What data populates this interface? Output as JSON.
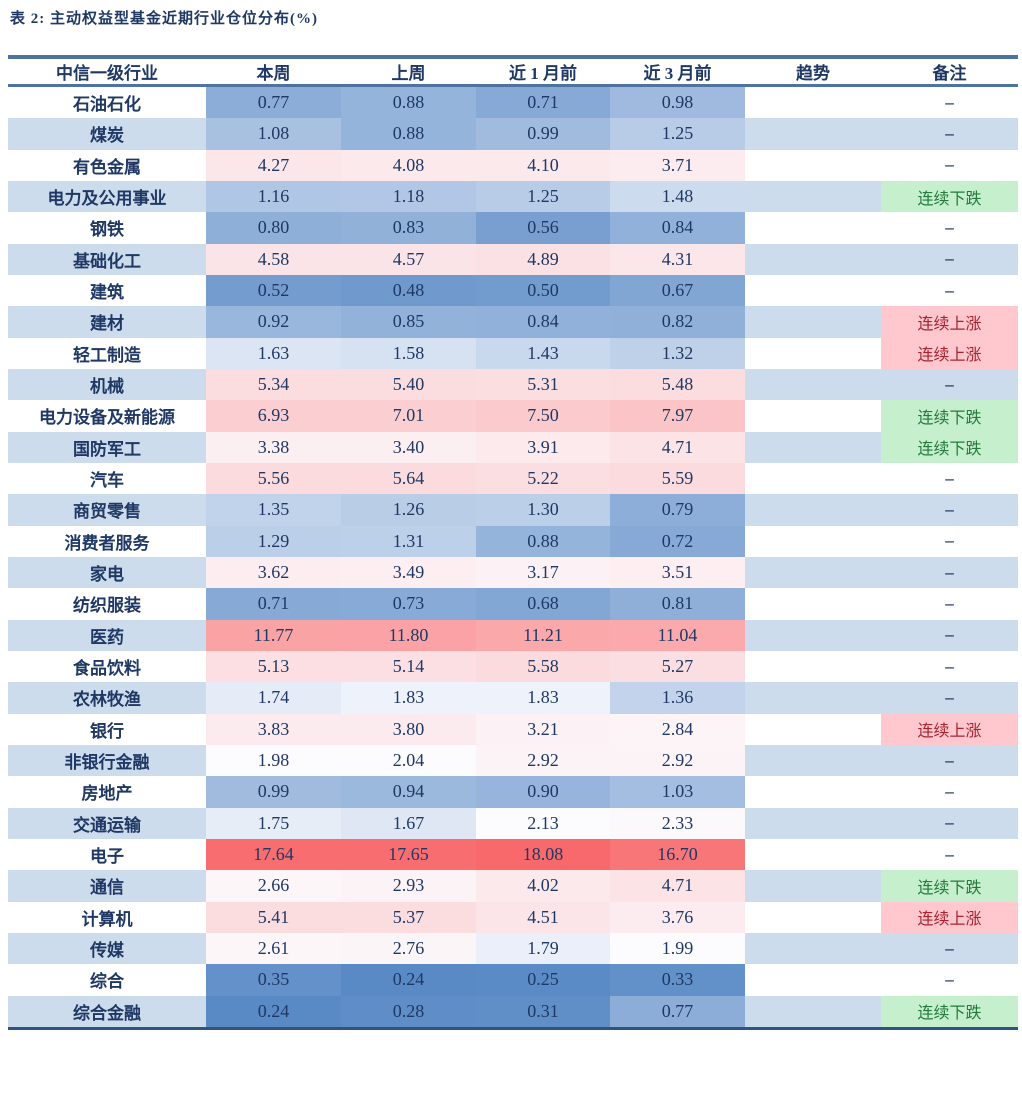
{
  "title": "表 2: 主动权益型基金近期行业仓位分布(%)",
  "colors": {
    "text": "#1F3864",
    "band": "#CDDCEC",
    "border_light": "#4E739E",
    "border_dark": "#2F5480",
    "badge_up_bg": "#FFC7CE",
    "badge_up_text": "#A52430",
    "badge_down_bg": "#C6EFCE",
    "badge_down_text": "#237A3B",
    "page_bg": "#FFFFFF"
  },
  "chart_data": {
    "type": "heatmap",
    "title": "表 2: 主动权益型基金近期行业仓位分布(%)",
    "header": [
      "中信一级行业",
      "本周",
      "上周",
      "近 1 月前",
      "近 3 月前",
      "趋势",
      "备注"
    ],
    "value_columns": [
      "本周",
      "上周",
      "近 1 月前",
      "近 3 月前"
    ],
    "colorscale": {
      "min_color": "#5A8AC6",
      "mid_color": "#FCFCFF",
      "max_color": "#F8696B",
      "note": "3-color scale: min -> median -> max"
    },
    "rows": [
      {
        "industry": "石油石化",
        "values": [
          0.77,
          0.88,
          0.71,
          0.98
        ],
        "trend": "",
        "remark": "–",
        "remark_type": "dash"
      },
      {
        "industry": "煤炭",
        "values": [
          1.08,
          0.88,
          0.99,
          1.25
        ],
        "trend": "",
        "remark": "–",
        "remark_type": "dash"
      },
      {
        "industry": "有色金属",
        "values": [
          4.27,
          4.08,
          4.1,
          3.71
        ],
        "trend": "",
        "remark": "–",
        "remark_type": "dash"
      },
      {
        "industry": "电力及公用事业",
        "values": [
          1.16,
          1.18,
          1.25,
          1.48
        ],
        "trend": "",
        "remark": "连续下跌",
        "remark_type": "down"
      },
      {
        "industry": "钢铁",
        "values": [
          0.8,
          0.83,
          0.56,
          0.84
        ],
        "trend": "",
        "remark": "–",
        "remark_type": "dash"
      },
      {
        "industry": "基础化工",
        "values": [
          4.58,
          4.57,
          4.89,
          4.31
        ],
        "trend": "",
        "remark": "–",
        "remark_type": "dash"
      },
      {
        "industry": "建筑",
        "values": [
          0.52,
          0.48,
          0.5,
          0.67
        ],
        "trend": "",
        "remark": "–",
        "remark_type": "dash"
      },
      {
        "industry": "建材",
        "values": [
          0.92,
          0.85,
          0.84,
          0.82
        ],
        "trend": "",
        "remark": "连续上涨",
        "remark_type": "up"
      },
      {
        "industry": "轻工制造",
        "values": [
          1.63,
          1.58,
          1.43,
          1.32
        ],
        "trend": "",
        "remark": "连续上涨",
        "remark_type": "up"
      },
      {
        "industry": "机械",
        "values": [
          5.34,
          5.4,
          5.31,
          5.48
        ],
        "trend": "",
        "remark": "–",
        "remark_type": "dash"
      },
      {
        "industry": "电力设备及新能源",
        "values": [
          6.93,
          7.01,
          7.5,
          7.97
        ],
        "trend": "",
        "remark": "连续下跌",
        "remark_type": "down"
      },
      {
        "industry": "国防军工",
        "values": [
          3.38,
          3.4,
          3.91,
          4.71
        ],
        "trend": "",
        "remark": "连续下跌",
        "remark_type": "down"
      },
      {
        "industry": "汽车",
        "values": [
          5.56,
          5.64,
          5.22,
          5.59
        ],
        "trend": "",
        "remark": "–",
        "remark_type": "dash"
      },
      {
        "industry": "商贸零售",
        "values": [
          1.35,
          1.26,
          1.3,
          0.79
        ],
        "trend": "",
        "remark": "–",
        "remark_type": "dash"
      },
      {
        "industry": "消费者服务",
        "values": [
          1.29,
          1.31,
          0.88,
          0.72
        ],
        "trend": "",
        "remark": "–",
        "remark_type": "dash"
      },
      {
        "industry": "家电",
        "values": [
          3.62,
          3.49,
          3.17,
          3.51
        ],
        "trend": "",
        "remark": "–",
        "remark_type": "dash"
      },
      {
        "industry": "纺织服装",
        "values": [
          0.71,
          0.73,
          0.68,
          0.81
        ],
        "trend": "",
        "remark": "–",
        "remark_type": "dash"
      },
      {
        "industry": "医药",
        "values": [
          11.77,
          11.8,
          11.21,
          11.04
        ],
        "trend": "",
        "remark": "–",
        "remark_type": "dash"
      },
      {
        "industry": "食品饮料",
        "values": [
          5.13,
          5.14,
          5.58,
          5.27
        ],
        "trend": "",
        "remark": "–",
        "remark_type": "dash"
      },
      {
        "industry": "农林牧渔",
        "values": [
          1.74,
          1.83,
          1.83,
          1.36
        ],
        "trend": "",
        "remark": "–",
        "remark_type": "dash"
      },
      {
        "industry": "银行",
        "values": [
          3.83,
          3.8,
          3.21,
          2.84
        ],
        "trend": "",
        "remark": "连续上涨",
        "remark_type": "up"
      },
      {
        "industry": "非银行金融",
        "values": [
          1.98,
          2.04,
          2.92,
          2.92
        ],
        "trend": "",
        "remark": "–",
        "remark_type": "dash"
      },
      {
        "industry": "房地产",
        "values": [
          0.99,
          0.94,
          0.9,
          1.03
        ],
        "trend": "",
        "remark": "–",
        "remark_type": "dash"
      },
      {
        "industry": "交通运输",
        "values": [
          1.75,
          1.67,
          2.13,
          2.33
        ],
        "trend": "",
        "remark": "–",
        "remark_type": "dash"
      },
      {
        "industry": "电子",
        "values": [
          17.64,
          17.65,
          18.08,
          16.7
        ],
        "trend": "",
        "remark": "–",
        "remark_type": "dash"
      },
      {
        "industry": "通信",
        "values": [
          2.66,
          2.93,
          4.02,
          4.71
        ],
        "trend": "",
        "remark": "连续下跌",
        "remark_type": "down"
      },
      {
        "industry": "计算机",
        "values": [
          5.41,
          5.37,
          4.51,
          3.76
        ],
        "trend": "",
        "remark": "连续上涨",
        "remark_type": "up"
      },
      {
        "industry": "传媒",
        "values": [
          2.61,
          2.76,
          1.79,
          1.99
        ],
        "trend": "",
        "remark": "–",
        "remark_type": "dash"
      },
      {
        "industry": "综合",
        "values": [
          0.35,
          0.24,
          0.25,
          0.33
        ],
        "trend": "",
        "remark": "–",
        "remark_type": "dash"
      },
      {
        "industry": "综合金融",
        "values": [
          0.24,
          0.28,
          0.31,
          0.77
        ],
        "trend": "",
        "remark": "连续下跌",
        "remark_type": "down"
      }
    ]
  }
}
